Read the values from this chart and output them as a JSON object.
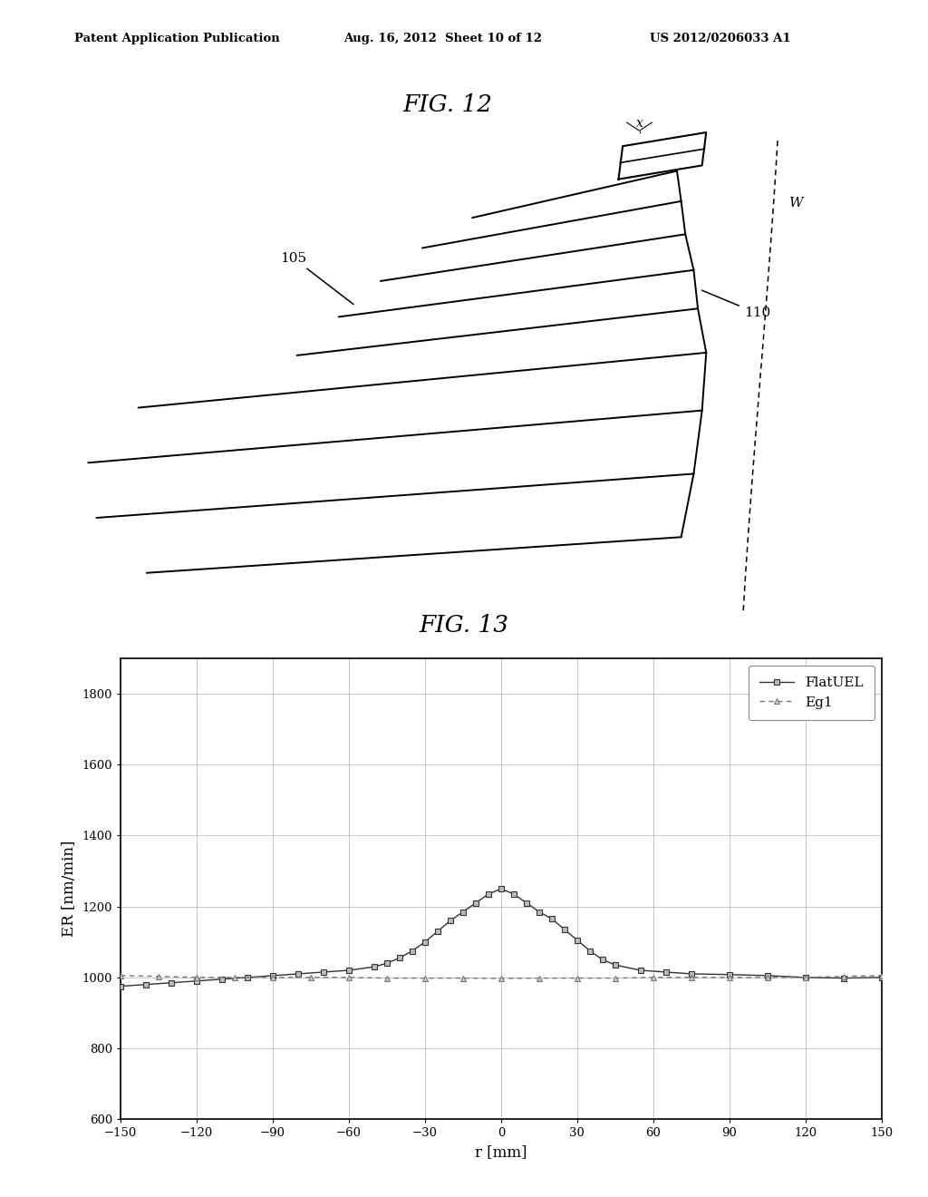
{
  "header_left": "Patent Application Publication",
  "header_mid": "Aug. 16, 2012  Sheet 10 of 12",
  "header_right": "US 2012/0206033 A1",
  "fig12_title": "FIG. 12",
  "fig13_title": "FIG. 13",
  "graph_xlabel": "r [mm]",
  "graph_ylabel": "ER [nm/min]",
  "graph_xlim": [
    -150,
    150
  ],
  "graph_ylim": [
    600,
    1900
  ],
  "graph_yticks": [
    600,
    800,
    1000,
    1200,
    1400,
    1600,
    1800
  ],
  "graph_xticks": [
    -150,
    -120,
    -90,
    -60,
    -30,
    0,
    30,
    60,
    90,
    120,
    150
  ],
  "legend_labels": [
    "FlatUEL",
    "Eg1"
  ],
  "flatuel_x": [
    -150,
    -140,
    -130,
    -120,
    -110,
    -100,
    -90,
    -80,
    -70,
    -60,
    -50,
    -45,
    -40,
    -35,
    -30,
    -25,
    -20,
    -15,
    -10,
    -5,
    0,
    5,
    10,
    15,
    20,
    25,
    30,
    35,
    40,
    45,
    55,
    65,
    75,
    90,
    105,
    120,
    135,
    150
  ],
  "flatuel_y": [
    975,
    980,
    985,
    990,
    995,
    1000,
    1005,
    1010,
    1015,
    1020,
    1030,
    1040,
    1055,
    1075,
    1100,
    1130,
    1160,
    1185,
    1210,
    1235,
    1250,
    1235,
    1210,
    1185,
    1165,
    1135,
    1105,
    1075,
    1050,
    1035,
    1020,
    1015,
    1010,
    1008,
    1005,
    1000,
    998,
    1000
  ],
  "eg1_x": [
    -150,
    -135,
    -120,
    -105,
    -90,
    -75,
    -60,
    -45,
    -30,
    -15,
    0,
    15,
    30,
    45,
    60,
    75,
    90,
    105,
    120,
    135,
    150
  ],
  "eg1_y": [
    1005,
    1003,
    1000,
    1000,
    1000,
    1000,
    1000,
    998,
    998,
    998,
    997,
    998,
    998,
    998,
    1000,
    1000,
    1000,
    1000,
    1000,
    1003,
    1005
  ],
  "background_color": "#ffffff"
}
